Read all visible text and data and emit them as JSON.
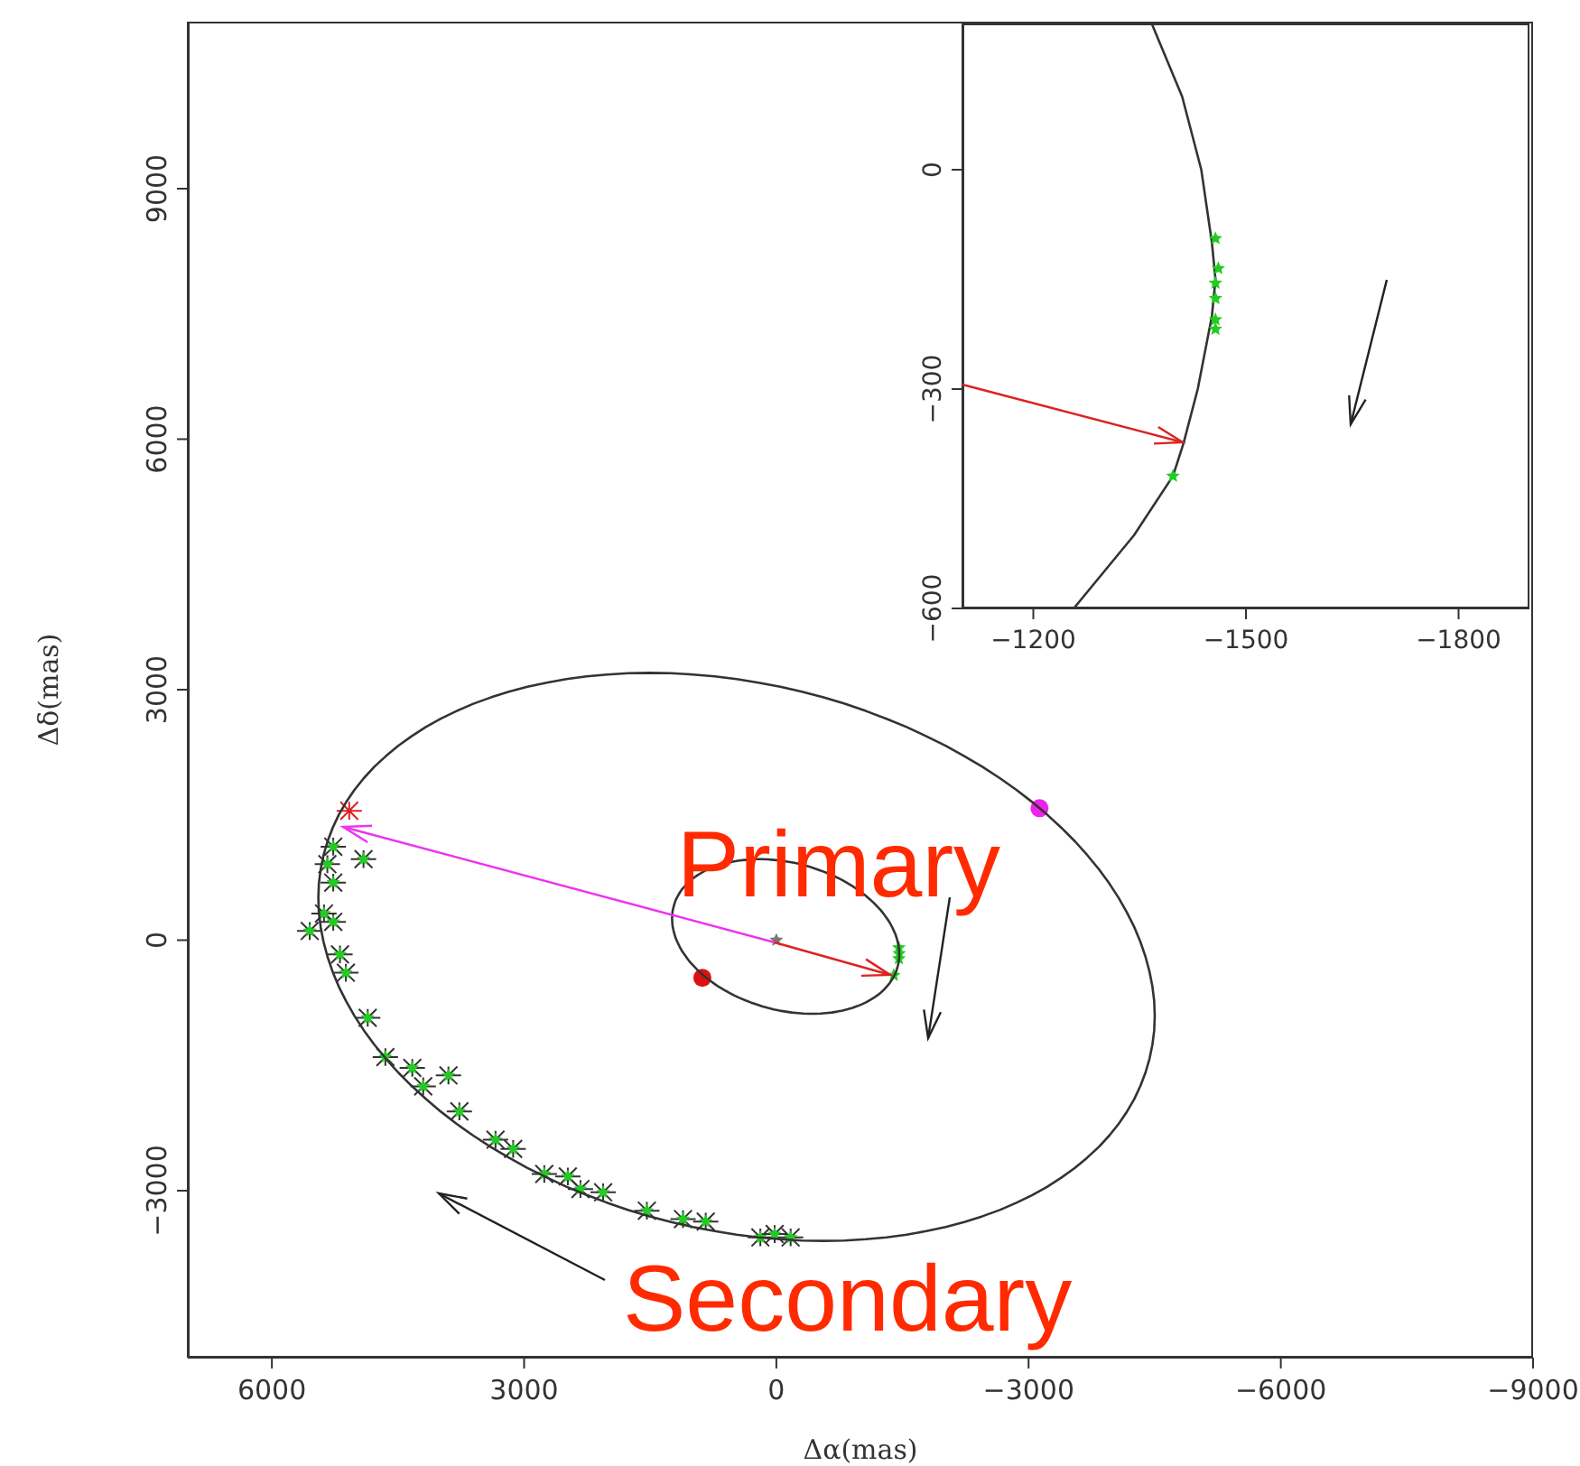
{
  "chart_data": [
    {
      "type": "scatter",
      "xlabel": "Δα(mas)",
      "ylabel": "Δδ(mas)",
      "xlim": [
        7000,
        -9000
      ],
      "ylim": [
        -5000,
        11000
      ],
      "xticks": [
        6000,
        3000,
        0,
        -3000,
        -6000,
        -9000
      ],
      "yticks": [
        -3000,
        0,
        3000,
        6000,
        9000
      ],
      "annotations": [
        {
          "text": "Primary",
          "x": -1460,
          "y": -170
        },
        "Secondary"
      ],
      "series": [
        {
          "type": "scatter",
          "color": "#333333",
          "marker": "cross",
          "x": [
            5270,
            5340,
            5270,
            5380,
            5550,
            5270,
            5190,
            5120,
            4910,
            4860,
            4650,
            4330,
            4200,
            3900,
            3770,
            3340,
            3130,
            2760,
            2480,
            2330,
            2060,
            1540,
            1110,
            840,
            190,
            20,
            -170
          ],
          "values": [
            1120,
            910,
            690,
            320,
            110,
            220,
            -170,
            -390,
            970,
            -930,
            -1400,
            -1530,
            -1750,
            -1620,
            -2050,
            -2390,
            -2500,
            -2800,
            -2830,
            -2980,
            -3020,
            -3240,
            -3340,
            -3370,
            -3560,
            -3520,
            -3560
          ]
        },
        {
          "type": "scatter",
          "color": "#22cc22",
          "marker": "star",
          "x": [
            5270,
            5340,
            5270,
            5380,
            5550,
            5270,
            5190,
            5120,
            4910,
            4860,
            4650,
            4330,
            4200,
            3900,
            3770,
            3340,
            3130,
            2760,
            2480,
            2330,
            2060,
            1540,
            1110,
            840,
            190,
            20,
            -170
          ],
          "values": [
            1120,
            910,
            690,
            320,
            110,
            220,
            -170,
            -390,
            970,
            -930,
            -1400,
            -1530,
            -1750,
            -1620,
            -2050,
            -2390,
            -2500,
            -2800,
            -2830,
            -2980,
            -3020,
            -3240,
            -3340,
            -3370,
            -3560,
            -3520,
            -3560
          ]
        },
        {
          "type": "scatter",
          "color": "#22cc22",
          "marker": "star",
          "x": [
            -1457,
            -1461,
            -1457,
            -1397
          ],
          "values": [
            -90,
            -160,
            -220,
            -420
          ]
        },
        {
          "type": "scatter",
          "color": "#dd1111",
          "marker": "circle",
          "x": [
            880
          ],
          "values": [
            -450
          ]
        },
        {
          "type": "scatter",
          "color": "#ee22ee",
          "marker": "circle",
          "x": [
            -3130
          ],
          "values": [
            1580
          ]
        },
        {
          "type": "scatter",
          "color": "#dd2222",
          "marker": "cross",
          "x": [
            5080
          ],
          "values": [
            1550
          ]
        },
        {
          "type": "scatter",
          "color": "#777777",
          "marker": "star",
          "x": [
            0
          ],
          "values": [
            0
          ]
        }
      ]
    },
    {
      "type": "scatter",
      "xlim": [
        -1100,
        -1900
      ],
      "ylim": [
        -600,
        200
      ],
      "xticks": [
        -1200,
        -1500,
        -1800
      ],
      "yticks": [
        -600,
        -300,
        0
      ],
      "series": [
        {
          "type": "line",
          "color": "#333333",
          "marker": "none",
          "x": [
            -1367,
            -1410,
            -1437,
            -1452,
            -1457
          ],
          "values": [
            200,
            100,
            0,
            -100,
            -150
          ]
        },
        {
          "type": "line",
          "color": "#333333",
          "marker": "none",
          "x": [
            -1457,
            -1452,
            -1432,
            -1412,
            -1397,
            -1342,
            -1257
          ],
          "values": [
            -150,
            -200,
            -300,
            -374,
            -419,
            -500,
            -600
          ]
        },
        {
          "type": "scatter",
          "color": "#22cc22",
          "marker": "star",
          "x": [
            -1457,
            -1461,
            -1457,
            -1457,
            -1457,
            -1457,
            -1397
          ],
          "values": [
            -94,
            -135,
            -155,
            -176,
            -205,
            -218,
            -419
          ]
        }
      ]
    }
  ]
}
